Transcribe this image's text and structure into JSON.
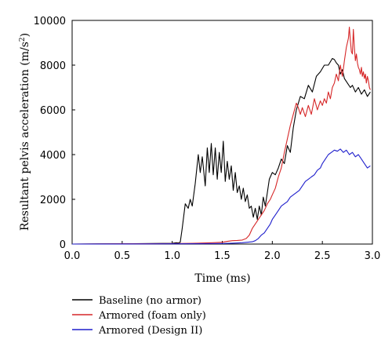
{
  "chart_data": {
    "type": "line",
    "xlabel": "Time (ms)",
    "ylabel": "Resultant pelvis acceleration (m/s",
    "ylabel_superscript": "2",
    "ylabel_suffix": ")",
    "xlim": [
      0,
      3
    ],
    "ylim": [
      0,
      10000
    ],
    "xticks": [
      "0.0",
      "0.5",
      "1.0",
      "1.5",
      "2.0",
      "2.5",
      "3.0"
    ],
    "yticks": [
      "0",
      "2000",
      "4000",
      "6000",
      "8000",
      "10000"
    ],
    "grid": false,
    "legend_position": "bottom-left, below plot",
    "series": [
      {
        "name": "Baseline (no armor)",
        "color": "#000000",
        "x": [
          0.0,
          0.5,
          1.0,
          1.04,
          1.06,
          1.08,
          1.1,
          1.13,
          1.16,
          1.18,
          1.2,
          1.23,
          1.26,
          1.28,
          1.3,
          1.33,
          1.35,
          1.37,
          1.39,
          1.41,
          1.43,
          1.45,
          1.47,
          1.49,
          1.51,
          1.53,
          1.55,
          1.57,
          1.59,
          1.61,
          1.63,
          1.65,
          1.67,
          1.69,
          1.71,
          1.73,
          1.75,
          1.77,
          1.79,
          1.81,
          1.83,
          1.85,
          1.87,
          1.89,
          1.91,
          1.93,
          1.95,
          1.97,
          2.0,
          2.03,
          2.06,
          2.09,
          2.12,
          2.15,
          2.18,
          2.21,
          2.24,
          2.28,
          2.32,
          2.36,
          2.4,
          2.44,
          2.48,
          2.52,
          2.56,
          2.6,
          2.62,
          2.64,
          2.66,
          2.68,
          2.7,
          2.72,
          2.75,
          2.78,
          2.8,
          2.83,
          2.86,
          2.89,
          2.92,
          2.95,
          2.98
        ],
        "values": [
          0,
          10,
          30,
          60,
          50,
          80,
          700,
          1800,
          1600,
          2000,
          1700,
          2700,
          4000,
          3200,
          3900,
          2600,
          4300,
          3200,
          4500,
          3100,
          4300,
          2900,
          4100,
          3200,
          4600,
          2800,
          3700,
          2900,
          3500,
          2400,
          3200,
          2300,
          2600,
          2000,
          2500,
          1900,
          2200,
          1600,
          1700,
          1200,
          1600,
          1100,
          1700,
          1300,
          2100,
          1700,
          2300,
          2900,
          3200,
          3100,
          3400,
          3800,
          3600,
          4400,
          4100,
          5200,
          6000,
          6600,
          6500,
          7100,
          6800,
          7500,
          7700,
          8000,
          8000,
          8300,
          8250,
          8100,
          8000,
          7600,
          7800,
          7400,
          7200,
          7000,
          7100,
          6800,
          7000,
          6700,
          6900,
          6600,
          6800
        ]
      },
      {
        "name": "Armored (foam only)",
        "color": "#d62728",
        "x": [
          0.0,
          0.5,
          1.0,
          1.2,
          1.4,
          1.5,
          1.55,
          1.6,
          1.65,
          1.7,
          1.74,
          1.77,
          1.8,
          1.83,
          1.86,
          1.89,
          1.92,
          1.95,
          1.98,
          2.0,
          2.03,
          2.06,
          2.09,
          2.12,
          2.15,
          2.18,
          2.21,
          2.24,
          2.26,
          2.28,
          2.3,
          2.33,
          2.36,
          2.39,
          2.42,
          2.45,
          2.48,
          2.5,
          2.52,
          2.54,
          2.56,
          2.58,
          2.6,
          2.62,
          2.64,
          2.66,
          2.68,
          2.7,
          2.72,
          2.74,
          2.76,
          2.77,
          2.78,
          2.79,
          2.8,
          2.81,
          2.82,
          2.83,
          2.84,
          2.85,
          2.86,
          2.87,
          2.88,
          2.89,
          2.9,
          2.91,
          2.92,
          2.93,
          2.94,
          2.95,
          2.96,
          2.97,
          2.98
        ],
        "values": [
          0,
          10,
          20,
          30,
          60,
          80,
          120,
          150,
          160,
          180,
          250,
          400,
          700,
          900,
          1100,
          1300,
          1500,
          1800,
          2000,
          2200,
          2500,
          3000,
          3400,
          4100,
          4700,
          5300,
          5800,
          6300,
          6100,
          5800,
          6100,
          5700,
          6200,
          5800,
          6500,
          6000,
          6400,
          6200,
          6500,
          6300,
          6800,
          6500,
          7000,
          7200,
          7600,
          7300,
          8000,
          7500,
          8200,
          8800,
          9200,
          9700,
          9100,
          8600,
          8500,
          9600,
          8800,
          8200,
          8500,
          8100,
          7900,
          7800,
          7600,
          7900,
          7500,
          7700,
          7400,
          7600,
          7200,
          7500,
          7300,
          7000,
          6900
        ]
      },
      {
        "name": "Armored (Design II)",
        "color": "#1f1fcc",
        "x": [
          0.0,
          0.5,
          1.0,
          1.3,
          1.5,
          1.6,
          1.7,
          1.75,
          1.8,
          1.83,
          1.86,
          1.89,
          1.92,
          1.95,
          1.98,
          2.0,
          2.03,
          2.06,
          2.09,
          2.12,
          2.15,
          2.18,
          2.21,
          2.24,
          2.27,
          2.3,
          2.33,
          2.36,
          2.39,
          2.42,
          2.45,
          2.48,
          2.5,
          2.53,
          2.56,
          2.59,
          2.62,
          2.65,
          2.68,
          2.71,
          2.74,
          2.77,
          2.8,
          2.83,
          2.86,
          2.89,
          2.92,
          2.95,
          2.98
        ],
        "values": [
          0,
          5,
          10,
          15,
          25,
          40,
          60,
          80,
          100,
          150,
          250,
          400,
          500,
          700,
          900,
          1100,
          1300,
          1500,
          1700,
          1800,
          1900,
          2100,
          2200,
          2300,
          2400,
          2600,
          2800,
          2900,
          3000,
          3100,
          3300,
          3400,
          3600,
          3800,
          4000,
          4100,
          4200,
          4150,
          4250,
          4100,
          4200,
          4000,
          4100,
          3900,
          4000,
          3800,
          3600,
          3400,
          3500
        ]
      }
    ]
  }
}
